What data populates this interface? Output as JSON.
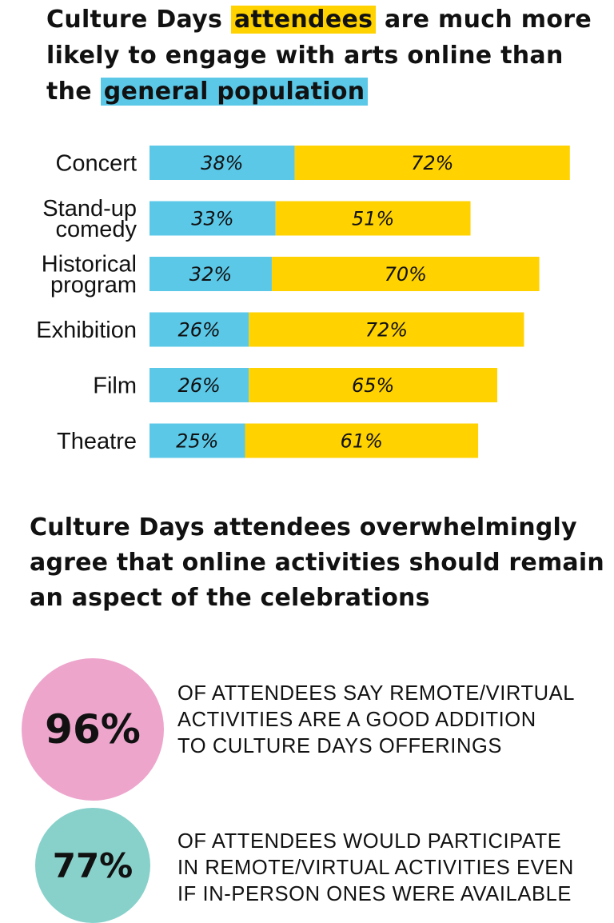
{
  "title1": {
    "part1": "Culture Days ",
    "highlight_attendees": "attendees",
    "part2": " are much more likely to engage with arts online than the ",
    "highlight_general": "general population"
  },
  "colors": {
    "general_population": "#5BC8E8",
    "attendees": "#FFD200",
    "circle_pink": "#EDA5CC",
    "circle_teal": "#88D1CB"
  },
  "chart_data": {
    "type": "bar",
    "orientation": "horizontal",
    "categories": [
      [
        "Concert"
      ],
      [
        "Stand-up",
        "comedy"
      ],
      [
        "Historical",
        "program"
      ],
      [
        "Exhibition"
      ],
      [
        "Film"
      ],
      [
        "Theatre"
      ]
    ],
    "series": [
      {
        "values": [
          38,
          33,
          32,
          26,
          26,
          25
        ],
        "labels": [
          "38%",
          "33%",
          "32%",
          "26%",
          "26%",
          "25%"
        ],
        "color": "#5BC8E8"
      },
      {
        "values": [
          72,
          51,
          70,
          72,
          65,
          61
        ],
        "labels": [
          "72%",
          "51%",
          "70%",
          "72%",
          "65%",
          "61%"
        ],
        "color": "#FFD200"
      }
    ],
    "legend": "none",
    "grid": false
  },
  "title2": "Culture Days attendees overwhelmingly agree that online activities should remain an aspect of the celebrations",
  "stats": [
    {
      "value": "96%",
      "color": "#EDA5CC",
      "lines": [
        "OF ATTENDEES SAY REMOTE/VIRTUAL",
        "ACTIVITIES ARE A GOOD ADDITION",
        "TO CULTURE DAYS OFFERINGS"
      ]
    },
    {
      "value": "77%",
      "color": "#88D1CB",
      "lines": [
        "OF ATTENDEES WOULD PARTICIPATE",
        "IN REMOTE/VIRTUAL ACTIVITIES EVEN",
        "IF IN-PERSON ONES WERE AVAILABLE"
      ]
    }
  ]
}
